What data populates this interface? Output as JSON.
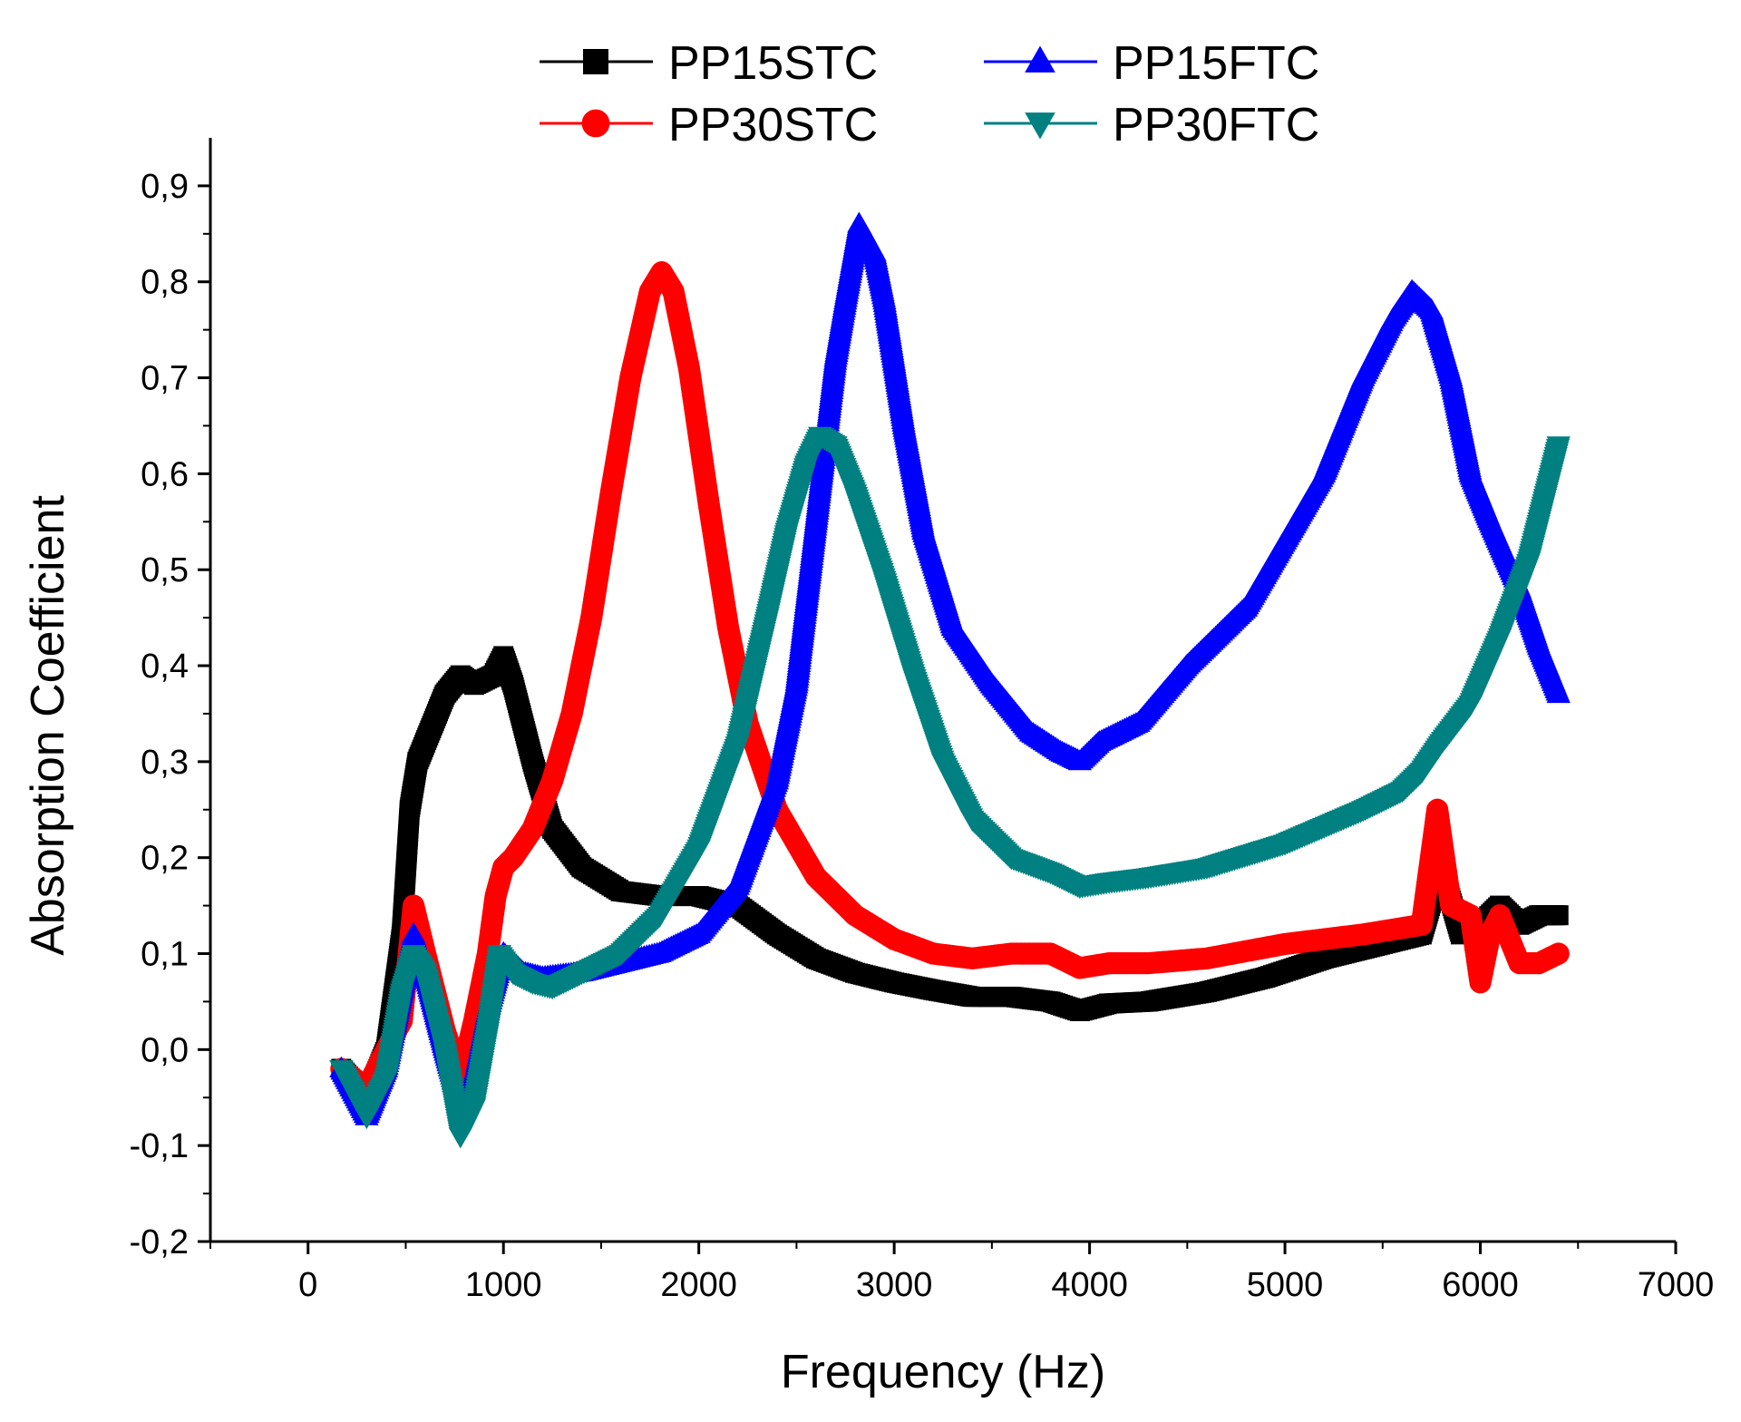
{
  "chart_data": {
    "type": "line",
    "title": "",
    "xlabel": "Frequency (Hz)",
    "ylabel": "Absorption Coefficient",
    "xlim": [
      -500,
      7000
    ],
    "ylim": [
      -0.2,
      0.95
    ],
    "xticks": [
      0,
      1000,
      2000,
      3000,
      4000,
      5000,
      6000,
      7000
    ],
    "xtick_labels": [
      "0",
      "1000",
      "2000",
      "3000",
      "4000",
      "5000",
      "6000",
      "7000"
    ],
    "yticks": [
      -0.2,
      -0.1,
      0.0,
      0.1,
      0.2,
      0.3,
      0.4,
      0.5,
      0.6,
      0.7,
      0.8,
      0.9
    ],
    "ytick_labels": [
      "-0,2",
      "-0,1",
      "0,0",
      "0,1",
      "0,2",
      "0,3",
      "0,4",
      "0,5",
      "0,6",
      "0,7",
      "0,8",
      "0,9"
    ],
    "grid": false,
    "legend_position": "top",
    "series": [
      {
        "name": "PP15STC",
        "color": "#000000",
        "marker": "square",
        "x": [
          170,
          300,
          400,
          480,
          520,
          560,
          620,
          700,
          780,
          850,
          950,
          1000,
          1050,
          1150,
          1250,
          1400,
          1600,
          1800,
          2000,
          2200,
          2400,
          2600,
          2800,
          3000,
          3200,
          3400,
          3600,
          3800,
          3950,
          4100,
          4300,
          4600,
          4900,
          5200,
          5500,
          5700,
          5800,
          5900,
          6000,
          6100,
          6200,
          6300,
          6400
        ],
        "y": [
          -0.02,
          -0.05,
          0.0,
          0.12,
          0.25,
          0.3,
          0.33,
          0.37,
          0.39,
          0.38,
          0.39,
          0.41,
          0.38,
          0.3,
          0.23,
          0.19,
          0.165,
          0.16,
          0.16,
          0.15,
          0.12,
          0.095,
          0.08,
          0.07,
          0.062,
          0.055,
          0.055,
          0.05,
          0.04,
          0.048,
          0.05,
          0.06,
          0.075,
          0.095,
          0.11,
          0.12,
          0.19,
          0.12,
          0.13,
          0.15,
          0.13,
          0.14,
          0.14
        ]
      },
      {
        "name": "PP30STC",
        "color": "#ff0000",
        "marker": "circle",
        "x": [
          170,
          300,
          400,
          480,
          540,
          600,
          700,
          780,
          850,
          920,
          960,
          1000,
          1050,
          1150,
          1250,
          1350,
          1450,
          1550,
          1650,
          1750,
          1810,
          1870,
          1950,
          2050,
          2150,
          2250,
          2400,
          2600,
          2800,
          3000,
          3200,
          3400,
          3600,
          3800,
          3950,
          4100,
          4300,
          4600,
          5000,
          5400,
          5700,
          5780,
          5850,
          5950,
          6000,
          6050,
          6100,
          6200,
          6300,
          6400
        ],
        "y": [
          -0.02,
          -0.04,
          0.0,
          0.03,
          0.15,
          0.1,
          0.02,
          -0.03,
          0.03,
          0.1,
          0.16,
          0.19,
          0.2,
          0.23,
          0.28,
          0.35,
          0.45,
          0.58,
          0.7,
          0.79,
          0.81,
          0.79,
          0.71,
          0.57,
          0.44,
          0.34,
          0.25,
          0.18,
          0.14,
          0.115,
          0.1,
          0.095,
          0.1,
          0.1,
          0.085,
          0.09,
          0.09,
          0.095,
          0.11,
          0.12,
          0.13,
          0.25,
          0.15,
          0.14,
          0.07,
          0.12,
          0.14,
          0.09,
          0.09,
          0.1
        ]
      },
      {
        "name": "PP15FTC",
        "color": "#0000ff",
        "marker": "triangle-up",
        "x": [
          170,
          300,
          400,
          480,
          540,
          600,
          700,
          780,
          850,
          920,
          1000,
          1100,
          1200,
          1400,
          1600,
          1800,
          2000,
          2200,
          2400,
          2500,
          2600,
          2700,
          2750,
          2820,
          2900,
          2950,
          3050,
          3150,
          3300,
          3500,
          3700,
          3850,
          3950,
          4050,
          4250,
          4500,
          4800,
          5000,
          5200,
          5400,
          5550,
          5650,
          5750,
          5850,
          5950,
          6050,
          6200,
          6300,
          6400
        ],
        "y": [
          -0.02,
          -0.07,
          -0.02,
          0.06,
          0.12,
          0.08,
          0.0,
          -0.06,
          -0.03,
          0.04,
          0.1,
          0.08,
          0.075,
          0.08,
          0.09,
          0.1,
          0.12,
          0.17,
          0.28,
          0.38,
          0.55,
          0.72,
          0.78,
          0.86,
          0.83,
          0.78,
          0.65,
          0.54,
          0.44,
          0.38,
          0.33,
          0.31,
          0.3,
          0.32,
          0.34,
          0.4,
          0.46,
          0.53,
          0.6,
          0.7,
          0.76,
          0.79,
          0.77,
          0.7,
          0.6,
          0.55,
          0.48,
          0.42,
          0.37
        ]
      },
      {
        "name": "PP30FTC",
        "color": "#008080",
        "marker": "triangle-down",
        "x": [
          170,
          300,
          400,
          480,
          540,
          600,
          700,
          780,
          850,
          920,
          980,
          1050,
          1150,
          1250,
          1400,
          1600,
          1800,
          2000,
          2200,
          2350,
          2450,
          2550,
          2620,
          2700,
          2800,
          2950,
          3100,
          3250,
          3400,
          3600,
          3800,
          3950,
          4100,
          4300,
          4600,
          5000,
          5400,
          5600,
          5700,
          5800,
          5950,
          6100,
          6250,
          6400
        ],
        "y": [
          -0.02,
          -0.07,
          -0.03,
          0.06,
          0.1,
          0.08,
          0.0,
          -0.09,
          -0.06,
          0.02,
          0.1,
          0.08,
          0.07,
          0.065,
          0.08,
          0.1,
          0.14,
          0.21,
          0.32,
          0.45,
          0.54,
          0.61,
          0.64,
          0.63,
          0.58,
          0.49,
          0.39,
          0.3,
          0.24,
          0.2,
          0.185,
          0.17,
          0.175,
          0.18,
          0.19,
          0.215,
          0.25,
          0.27,
          0.29,
          0.32,
          0.36,
          0.43,
          0.51,
          0.63
        ]
      }
    ]
  }
}
